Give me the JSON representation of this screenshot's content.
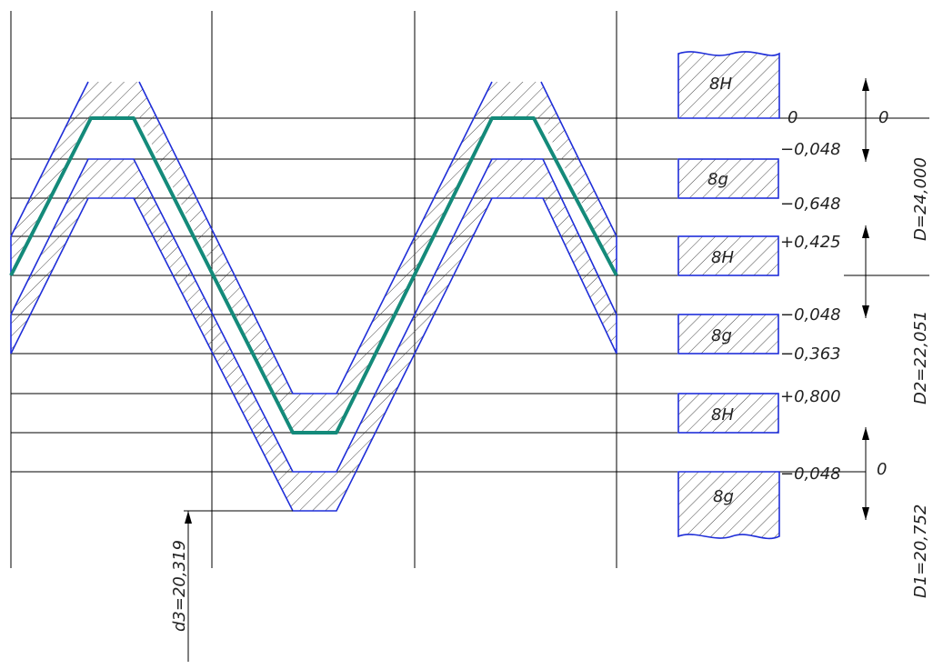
{
  "diagram": {
    "tolerance_boxes": [
      {
        "id": "nut-major",
        "label": "8H"
      },
      {
        "id": "bolt-major",
        "label": "8g"
      },
      {
        "id": "nut-pitch",
        "label": "8H"
      },
      {
        "id": "bolt-pitch",
        "label": "8g"
      },
      {
        "id": "nut-minor",
        "label": "8H"
      },
      {
        "id": "bolt-minor",
        "label": "8g"
      }
    ],
    "deviations": {
      "major_zero": "0",
      "major_upper_bolt": "−0,048",
      "major_lower_bolt": "−0,648",
      "pitch_upper_nut": "+0,425",
      "pitch_upper_bolt": "−0,048",
      "pitch_lower_bolt": "−0,363",
      "minor_upper_nut": "+0,800",
      "minor_upper_bolt": "−0,048"
    },
    "axis_zero_labels": {
      "major": "0",
      "minor": "0"
    },
    "dimensions": {
      "D": "D=24,000",
      "D2": "D2=22,051",
      "D1": "D1=20,752",
      "d3": "d3=20,319"
    }
  }
}
